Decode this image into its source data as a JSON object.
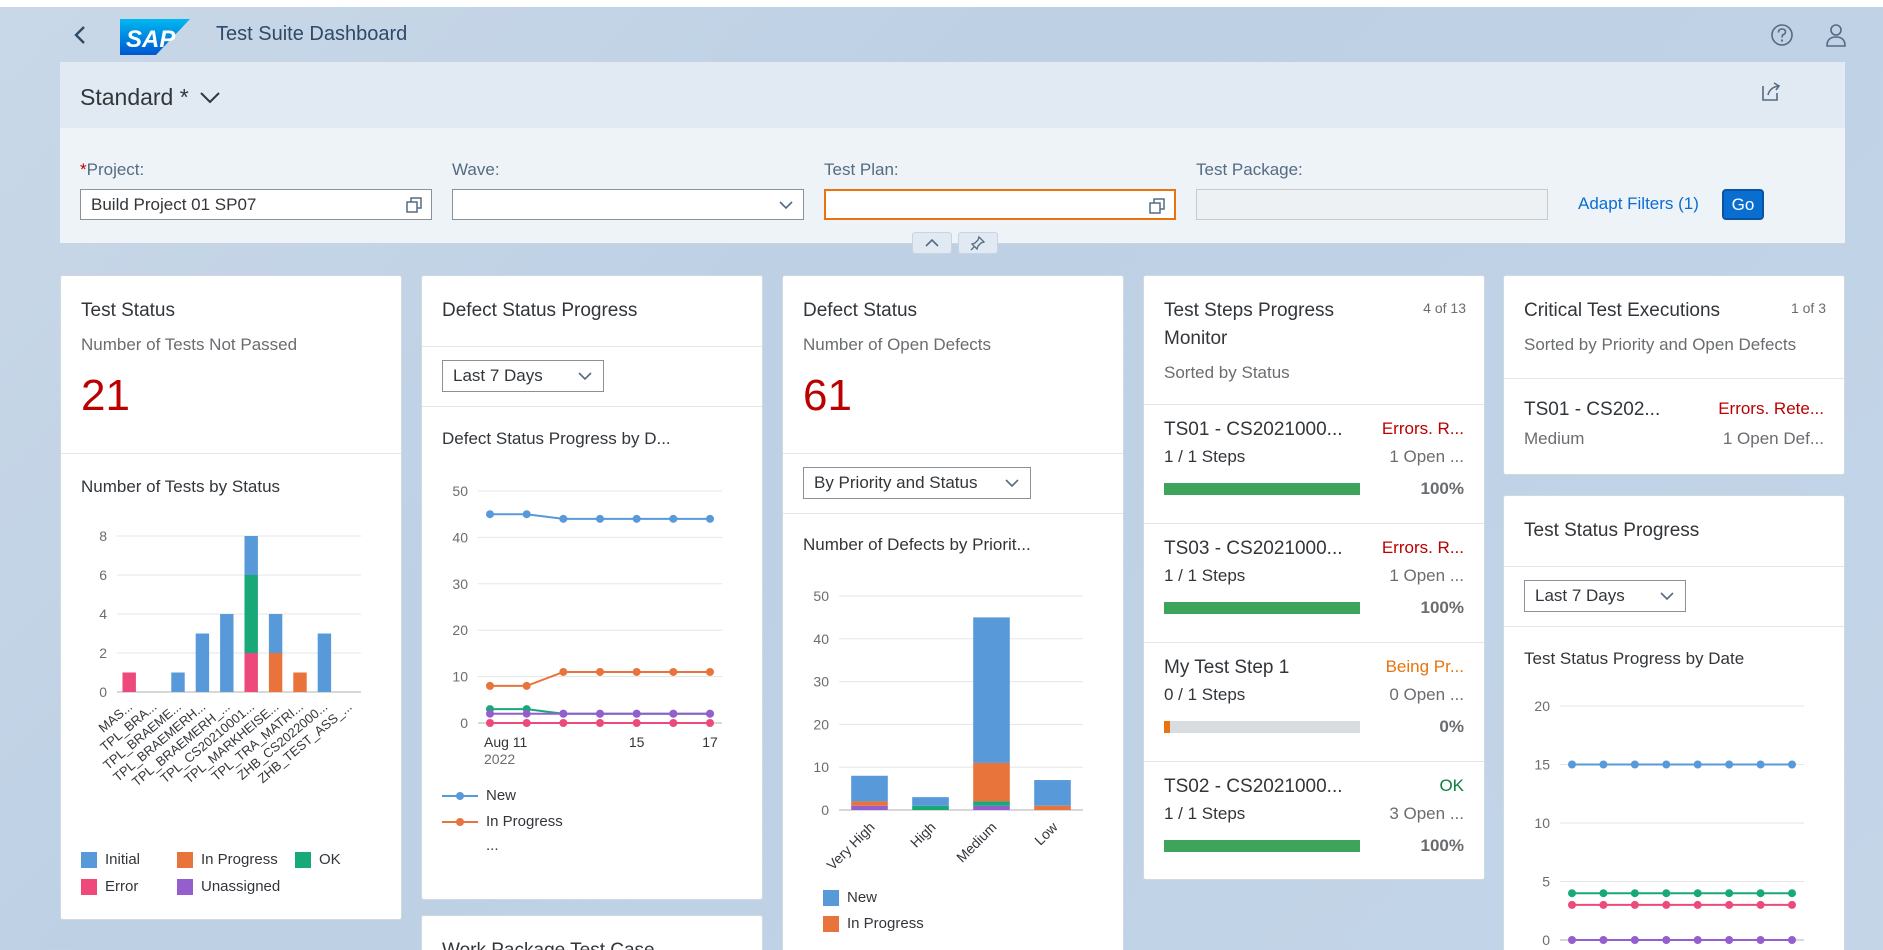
{
  "shell": {
    "title": "Test Suite Dashboard",
    "logo_text": "SAP",
    "icons": [
      "back-icon",
      "help-icon",
      "user-icon"
    ]
  },
  "filterbar": {
    "variant": "Standard *",
    "fields": {
      "project": {
        "label": "Project:",
        "required_mark": "*",
        "value": "Build Project 01 SP07"
      },
      "wave": {
        "label": "Wave:",
        "value": ""
      },
      "test_plan": {
        "label": "Test Plan:",
        "value": ""
      },
      "test_package": {
        "label": "Test Package:",
        "value": ""
      }
    },
    "adapt_filters": "Adapt Filters (1)",
    "go": "Go"
  },
  "cards": {
    "test_status": {
      "title": "Test Status",
      "subtitle": "Number of Tests Not Passed",
      "kpi": "21",
      "chart_title": "Number of Tests by Status",
      "legend": [
        "Initial",
        "In Progress",
        "OK",
        "Error",
        "Unassigned"
      ]
    },
    "defect_progress": {
      "title": "Defect Status Progress",
      "dropdown": "Last 7 Days",
      "chart_title": "Defect Status Progress by D...",
      "legend": [
        "New",
        "In Progress"
      ],
      "legend_more": "..."
    },
    "defect_status": {
      "title": "Defect Status",
      "subtitle": "Number of Open Defects",
      "kpi": "61",
      "dropdown": "By Priority and Status",
      "chart_title": "Number of Defects by Priorit...",
      "legend": [
        "New",
        "In Progress"
      ]
    },
    "test_steps": {
      "title_line1": "Test Steps Progress",
      "title_line2": "Monitor",
      "count": "4 of 13",
      "subtitle": "Sorted by Status",
      "items": [
        {
          "name": "TS01 - CS2021000...",
          "status": "Errors. R...",
          "steps": "1 / 1 Steps",
          "open": "1 Open ...",
          "pct": "100%",
          "progress": 100
        },
        {
          "name": "TS03 - CS2021000...",
          "status": "Errors. R...",
          "steps": "1 / 1 Steps",
          "open": "1 Open ...",
          "pct": "100%",
          "progress": 100
        },
        {
          "name": "My Test Step 1",
          "status": "Being Pr...",
          "steps": "0 / 1 Steps",
          "open": "0 Open ...",
          "pct": "0%",
          "progress": 0
        },
        {
          "name": "TS02 - CS2021000...",
          "status": "OK",
          "steps": "1 / 1 Steps",
          "open": "3 Open ...",
          "pct": "100%",
          "progress": 100
        }
      ]
    },
    "critical": {
      "title": "Critical Test Executions",
      "count": "1 of 3",
      "subtitle": "Sorted by Priority and Open Defects",
      "item": {
        "name": "TS01 - CS202...",
        "status": "Errors. Rete...",
        "priority": "Medium",
        "open": "1 Open Def..."
      }
    },
    "test_status_progress": {
      "title": "Test Status Progress",
      "dropdown": "Last 7 Days",
      "chart_title": "Test Status Progress by Date"
    },
    "work_package": {
      "title": "Work Package Test Case"
    }
  },
  "colors": {
    "initial": "#5899da",
    "in_progress": "#e8743b",
    "ok": "#19a979",
    "error": "#ed4a7b",
    "unassigned": "#945ecf",
    "brand": "#0a6ed1",
    "negative": "#bb0000",
    "critical": "#e9730c",
    "positive": "#107e3e",
    "bar_ok": "#3fa45b"
  },
  "chart_data": [
    {
      "type": "bar",
      "stacked": true,
      "categories": [
        "MAS...",
        "TPL_BRA...",
        "TPL_BRAEME...",
        "TPL_BRAEMERH...",
        "TPL_BRAEMERH_...",
        "TPL_CS20210001...",
        "TPL_MARKHEISE...",
        "TPL_TRA_MATRI...",
        "ZHB_CS2022000...",
        "ZHB_TEST_ASS_..."
      ],
      "series": [
        {
          "name": "Initial",
          "values": [
            0,
            0,
            1,
            3,
            4,
            2,
            2,
            0,
            3,
            0
          ]
        },
        {
          "name": "In Progress",
          "values": [
            0,
            0,
            0,
            0,
            0,
            0,
            2,
            1,
            0,
            0
          ]
        },
        {
          "name": "OK",
          "values": [
            0,
            0,
            0,
            0,
            0,
            4,
            0,
            0,
            0,
            0
          ]
        },
        {
          "name": "Error",
          "values": [
            1,
            0,
            0,
            0,
            0,
            2,
            0,
            0,
            0,
            0
          ]
        },
        {
          "name": "Unassigned",
          "values": [
            0,
            0,
            0,
            0,
            0,
            0,
            0,
            0,
            0,
            0
          ]
        }
      ],
      "y_ticks": [
        0,
        2,
        4,
        6,
        8
      ],
      "ylim": [
        0,
        8
      ]
    },
    {
      "type": "line",
      "x": [
        "2022-08-11",
        "2022-08-12",
        "2022-08-13",
        "2022-08-14",
        "2022-08-15",
        "2022-08-16",
        "2022-08-17"
      ],
      "x_tick_labels": [
        {
          "i": 0,
          "label": "Aug 11",
          "sub": "2022"
        },
        {
          "i": 4,
          "label": "15"
        },
        {
          "i": 6,
          "label": "17"
        }
      ],
      "series": [
        {
          "name": "New",
          "color": "#5899da",
          "values": [
            45,
            45,
            44,
            44,
            44,
            44,
            44
          ]
        },
        {
          "name": "In Progress",
          "color": "#e8743b",
          "values": [
            8,
            8,
            11,
            11,
            11,
            11,
            11
          ]
        },
        {
          "color": "#19a979",
          "values": [
            3,
            3,
            2,
            2,
            2,
            2,
            2
          ]
        },
        {
          "color": "#945ecf",
          "values": [
            2,
            2,
            2,
            2,
            2,
            2,
            2
          ]
        },
        {
          "color": "#ed4a7b",
          "values": [
            0,
            0,
            0,
            0,
            0,
            0,
            0
          ]
        }
      ],
      "y_ticks": [
        0,
        10,
        20,
        30,
        40,
        50
      ],
      "ylim": [
        0,
        50
      ]
    },
    {
      "type": "bar",
      "stacked": true,
      "categories": [
        "Very High",
        "High",
        "Medium",
        "Low"
      ],
      "series": [
        {
          "name": "New",
          "color": "#5899da",
          "values": [
            6,
            2,
            34,
            6
          ]
        },
        {
          "name": "In Progress",
          "color": "#e8743b",
          "values": [
            1,
            0,
            9,
            1
          ]
        },
        {
          "color": "#19a979",
          "values": [
            0,
            1,
            1,
            0
          ]
        },
        {
          "color": "#ed4a7b",
          "values": [
            0,
            0,
            0,
            0
          ]
        },
        {
          "color": "#945ecf",
          "values": [
            1,
            0,
            1,
            0
          ]
        }
      ],
      "y_ticks": [
        0,
        10,
        20,
        30,
        40,
        50
      ],
      "ylim": [
        0,
        50
      ]
    },
    {
      "type": "line",
      "x": [
        1,
        2,
        3,
        4,
        5,
        6,
        7,
        8
      ],
      "series": [
        {
          "color": "#5899da",
          "values": [
            15,
            15,
            15,
            15,
            15,
            15,
            15,
            15
          ]
        },
        {
          "color": "#19a979",
          "values": [
            4,
            4,
            4,
            4,
            4,
            4,
            4,
            4
          ]
        },
        {
          "color": "#ed4a7b",
          "values": [
            3,
            3,
            3,
            3,
            3,
            3,
            3,
            3
          ]
        },
        {
          "color": "#945ecf",
          "values": [
            0,
            0,
            0,
            0,
            0,
            0,
            0,
            0
          ]
        }
      ],
      "y_ticks": [
        0,
        5,
        10,
        15,
        20
      ],
      "ylim": [
        0,
        20
      ]
    }
  ]
}
